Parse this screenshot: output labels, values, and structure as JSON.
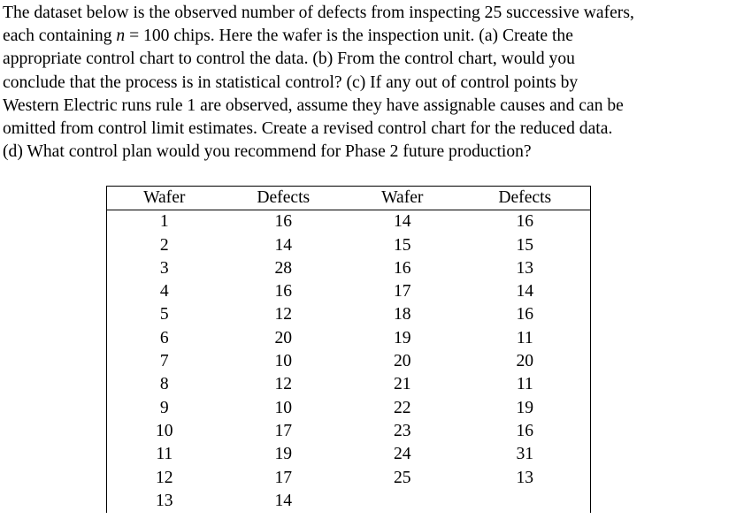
{
  "problem": {
    "line1": "The dataset below is the observed number of defects from inspecting 25 successive wafers,",
    "line2_pre": "each containing ",
    "line2_var": "n",
    "line2_post": " = 100 chips. Here the wafer is the inspection unit. (a) Create the",
    "line3": "appropriate control chart to control the data. (b) From the control chart, would you",
    "line4": "conclude that the process is in statistical control? (c) If any out of control points by",
    "line5": "Western Electric runs rule 1 are observed, assume they have assignable causes and can be",
    "line6": "omitted from control limit estimates. Create a revised control chart for the reduced data.",
    "line7": "(d) What control plan would you recommend for Phase 2 future production?"
  },
  "table": {
    "headers": [
      "Wafer",
      "Defects",
      "Wafer",
      "Defects"
    ],
    "rows": [
      [
        "1",
        "16",
        "14",
        "16"
      ],
      [
        "2",
        "14",
        "15",
        "15"
      ],
      [
        "3",
        "28",
        "16",
        "13"
      ],
      [
        "4",
        "16",
        "17",
        "14"
      ],
      [
        "5",
        "12",
        "18",
        "16"
      ],
      [
        "6",
        "20",
        "19",
        "11"
      ],
      [
        "7",
        "10",
        "20",
        "20"
      ],
      [
        "8",
        "12",
        "21",
        "11"
      ],
      [
        "9",
        "10",
        "22",
        "19"
      ],
      [
        "10",
        "17",
        "23",
        "16"
      ],
      [
        "11",
        "19",
        "24",
        "31"
      ],
      [
        "12",
        "17",
        "25",
        "13"
      ],
      [
        "13",
        "14",
        "",
        ""
      ]
    ]
  }
}
